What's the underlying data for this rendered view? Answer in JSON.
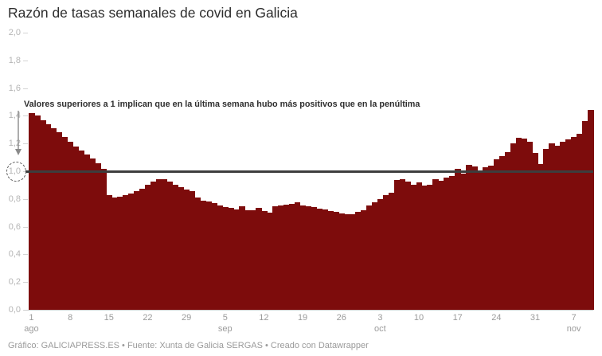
{
  "header": {
    "title": "Razón de tasas semanales de covid en Galicia"
  },
  "annotation": {
    "text": "Valores superiores a 1 implican que en la última semana hubo más positivos que en la penúltima"
  },
  "footer": {
    "text": "Gráfico: GALICIAPRESS.ES • Fuente: Xunta de Galicia SERGAS • Creado con Datawrapper"
  },
  "chart_data": {
    "type": "bar",
    "title": "Razón de tasas semanales de covid en Galicia",
    "xlabel": "",
    "ylabel": "",
    "date_range": "daily values, 1 ago – 10 nov",
    "baseline": 1.0,
    "ylim": [
      0,
      2.0
    ],
    "grid": "off",
    "legend": "none",
    "y_ticks": [
      {
        "label": "2,0",
        "value": 2.0
      },
      {
        "label": "1,8",
        "value": 1.8
      },
      {
        "label": "1,6",
        "value": 1.6
      },
      {
        "label": "1,4",
        "value": 1.4
      },
      {
        "label": "1,2",
        "value": 1.2
      },
      {
        "label": "1,0",
        "value": 1.0
      },
      {
        "label": "0,8",
        "value": 0.8
      },
      {
        "label": "0,6",
        "value": 0.6
      },
      {
        "label": "0,4",
        "value": 0.4
      },
      {
        "label": "0,2",
        "value": 0.2
      },
      {
        "label": "0,0",
        "value": 0.0
      }
    ],
    "x_ticks": [
      {
        "label": "1",
        "month": "ago",
        "day": 0
      },
      {
        "label": "8",
        "month": "",
        "day": 7
      },
      {
        "label": "15",
        "month": "",
        "day": 14
      },
      {
        "label": "22",
        "month": "",
        "day": 21
      },
      {
        "label": "29",
        "month": "",
        "day": 28
      },
      {
        "label": "5",
        "month": "sep",
        "day": 35
      },
      {
        "label": "12",
        "month": "",
        "day": 42
      },
      {
        "label": "19",
        "month": "",
        "day": 49
      },
      {
        "label": "26",
        "month": "",
        "day": 56
      },
      {
        "label": "3",
        "month": "oct",
        "day": 63
      },
      {
        "label": "10",
        "month": "",
        "day": 70
      },
      {
        "label": "17",
        "month": "",
        "day": 77
      },
      {
        "label": "24",
        "month": "",
        "day": 84
      },
      {
        "label": "31",
        "month": "",
        "day": 91
      },
      {
        "label": "7",
        "month": "nov",
        "day": 98
      }
    ],
    "values": [
      1.42,
      1.4,
      1.37,
      1.34,
      1.31,
      1.28,
      1.25,
      1.21,
      1.18,
      1.15,
      1.12,
      1.09,
      1.06,
      1.02,
      0.83,
      0.81,
      0.815,
      0.825,
      0.84,
      0.855,
      0.875,
      0.9,
      0.925,
      0.94,
      0.94,
      0.925,
      0.905,
      0.885,
      0.87,
      0.855,
      0.81,
      0.79,
      0.78,
      0.77,
      0.755,
      0.74,
      0.735,
      0.725,
      0.75,
      0.72,
      0.72,
      0.735,
      0.71,
      0.7,
      0.75,
      0.755,
      0.76,
      0.765,
      0.775,
      0.755,
      0.75,
      0.74,
      0.73,
      0.725,
      0.715,
      0.705,
      0.695,
      0.69,
      0.69,
      0.705,
      0.72,
      0.755,
      0.775,
      0.8,
      0.825,
      0.845,
      0.935,
      0.945,
      0.925,
      0.905,
      0.92,
      0.895,
      0.905,
      0.945,
      0.93,
      0.955,
      0.965,
      1.02,
      0.985,
      1.045,
      1.035,
      1.005,
      1.03,
      1.04,
      1.085,
      1.11,
      1.14,
      1.2,
      1.24,
      1.235,
      1.21,
      1.135,
      1.05,
      1.16,
      1.2,
      1.185,
      1.21,
      1.23,
      1.25,
      1.27,
      1.36,
      1.44
    ],
    "colors": {
      "bar": "#7d0c0c",
      "baseline_line": "#3d3d3d",
      "y_axis_text": "#b5b5b5",
      "x_axis_text": "#9b9b9b",
      "annotation_text": "#2e2e2e"
    }
  }
}
